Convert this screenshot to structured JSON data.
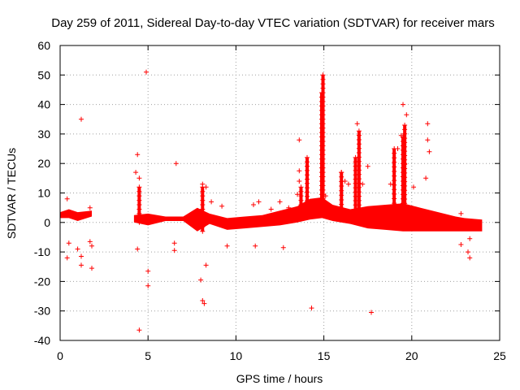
{
  "chart_data": {
    "type": "scatter",
    "title": "Day 259 of 2011, Sidereal Day-to-day VTEC variation (SDTVAR) for receiver mars",
    "xlabel": "GPS time / hours",
    "ylabel": "SDTVAR / TECUs",
    "xlim": [
      0,
      25
    ],
    "ylim": [
      -40,
      60
    ],
    "xticks": [
      0,
      5,
      10,
      15,
      20,
      25
    ],
    "yticks": [
      -40,
      -30,
      -20,
      -10,
      0,
      10,
      20,
      30,
      40,
      50,
      60
    ],
    "xtick_labels": [
      "0",
      "5",
      "10",
      "15",
      "20",
      "25"
    ],
    "ytick_labels": [
      "-40",
      "-30",
      "-20",
      "-10",
      "0",
      "10",
      "20",
      "30",
      "40",
      "50",
      "60"
    ],
    "grid": true,
    "marker": "+",
    "color": "#ff0000",
    "dense_band": {
      "x": [
        0.0,
        0.5,
        1.0,
        1.8,
        4.2,
        5.0,
        6.0,
        7.0,
        7.8,
        8.5,
        9.5,
        10.5,
        11.5,
        12.5,
        13.5,
        14.2,
        14.9,
        15.5,
        16.5,
        17.5,
        18.5,
        19.5,
        20.5,
        21.5,
        22.5,
        23.0,
        24.0
      ],
      "lower": [
        1.5,
        1.5,
        0.5,
        2.0,
        0.0,
        -1.0,
        0.5,
        0.5,
        -3.0,
        -0.5,
        -2.5,
        -2.0,
        -1.5,
        -1.0,
        0.0,
        1.0,
        1.5,
        0.5,
        -0.5,
        -2.0,
        -2.5,
        -3.0,
        -3.0,
        -3.0,
        -3.0,
        -3.0,
        -3.0
      ],
      "upper": [
        3.5,
        4.5,
        3.5,
        4.0,
        2.5,
        3.0,
        2.0,
        2.0,
        5.0,
        3.0,
        1.5,
        2.0,
        2.5,
        4.0,
        5.5,
        8.0,
        8.5,
        6.0,
        4.5,
        5.5,
        6.0,
        6.5,
        5.0,
        3.5,
        2.0,
        1.5,
        1.0
      ]
    },
    "spikes": [
      {
        "x": 14.05,
        "y0": 3,
        "y1": 22
      },
      {
        "x": 14.88,
        "y0": 5,
        "y1": 44
      },
      {
        "x": 14.95,
        "y0": 5,
        "y1": 50
      },
      {
        "x": 16.0,
        "y0": 3,
        "y1": 17
      },
      {
        "x": 16.8,
        "y0": 3,
        "y1": 22
      },
      {
        "x": 17.0,
        "y0": 3,
        "y1": 31
      },
      {
        "x": 19.5,
        "y0": 5,
        "y1": 29
      },
      {
        "x": 19.6,
        "y0": 5,
        "y1": 33
      },
      {
        "x": 19.0,
        "y0": 5,
        "y1": 25
      },
      {
        "x": 8.1,
        "y0": -3,
        "y1": 12
      },
      {
        "x": 4.5,
        "y0": 0,
        "y1": 12
      },
      {
        "x": 13.7,
        "y0": 3,
        "y1": 12
      }
    ],
    "points": [
      {
        "x": 0.4,
        "y": 8
      },
      {
        "x": 0.5,
        "y": -7
      },
      {
        "x": 0.4,
        "y": -12
      },
      {
        "x": 1.0,
        "y": -9
      },
      {
        "x": 1.2,
        "y": 35
      },
      {
        "x": 1.2,
        "y": -11.5
      },
      {
        "x": 1.2,
        "y": -14.5
      },
      {
        "x": 1.7,
        "y": 5
      },
      {
        "x": 1.7,
        "y": -6.5
      },
      {
        "x": 1.8,
        "y": -8
      },
      {
        "x": 1.8,
        "y": -15.5
      },
      {
        "x": 4.3,
        "y": 17
      },
      {
        "x": 4.4,
        "y": 23
      },
      {
        "x": 4.5,
        "y": 15
      },
      {
        "x": 4.4,
        "y": -9
      },
      {
        "x": 4.5,
        "y": -36.5
      },
      {
        "x": 4.9,
        "y": 51
      },
      {
        "x": 5.0,
        "y": -16.5
      },
      {
        "x": 5.0,
        "y": -21.5
      },
      {
        "x": 6.6,
        "y": 20
      },
      {
        "x": 6.5,
        "y": -7
      },
      {
        "x": 6.5,
        "y": -9.5
      },
      {
        "x": 8.0,
        "y": -19.5
      },
      {
        "x": 8.1,
        "y": -26.5
      },
      {
        "x": 8.2,
        "y": -27.5
      },
      {
        "x": 8.3,
        "y": -14.5
      },
      {
        "x": 8.1,
        "y": 13
      },
      {
        "x": 8.3,
        "y": 12
      },
      {
        "x": 8.6,
        "y": 7
      },
      {
        "x": 9.2,
        "y": 5.5
      },
      {
        "x": 9.5,
        "y": -8
      },
      {
        "x": 11.0,
        "y": 6
      },
      {
        "x": 11.1,
        "y": -8
      },
      {
        "x": 11.3,
        "y": 7
      },
      {
        "x": 12.0,
        "y": 4.5
      },
      {
        "x": 12.5,
        "y": 7
      },
      {
        "x": 12.7,
        "y": -8.5
      },
      {
        "x": 13.0,
        "y": 5
      },
      {
        "x": 13.6,
        "y": 28
      },
      {
        "x": 13.6,
        "y": 17.5
      },
      {
        "x": 13.6,
        "y": 14
      },
      {
        "x": 13.5,
        "y": 9.5
      },
      {
        "x": 14.3,
        "y": -29
      },
      {
        "x": 15.1,
        "y": 9
      },
      {
        "x": 16.0,
        "y": 17
      },
      {
        "x": 16.4,
        "y": 13
      },
      {
        "x": 16.2,
        "y": 14
      },
      {
        "x": 16.9,
        "y": 33.5
      },
      {
        "x": 17.5,
        "y": 19
      },
      {
        "x": 17.7,
        "y": -30.5
      },
      {
        "x": 17.2,
        "y": 13
      },
      {
        "x": 18.8,
        "y": 13
      },
      {
        "x": 19.5,
        "y": 40
      },
      {
        "x": 19.7,
        "y": 36.5
      },
      {
        "x": 19.4,
        "y": 29.5
      },
      {
        "x": 19.6,
        "y": 20
      },
      {
        "x": 19.2,
        "y": 25
      },
      {
        "x": 20.1,
        "y": 12
      },
      {
        "x": 20.9,
        "y": 33.5
      },
      {
        "x": 20.9,
        "y": 28
      },
      {
        "x": 21.0,
        "y": 24
      },
      {
        "x": 20.8,
        "y": 15
      },
      {
        "x": 22.8,
        "y": 3
      },
      {
        "x": 22.8,
        "y": -7.5
      },
      {
        "x": 23.2,
        "y": -10
      },
      {
        "x": 23.3,
        "y": -12
      },
      {
        "x": 23.3,
        "y": -5.5
      }
    ]
  }
}
